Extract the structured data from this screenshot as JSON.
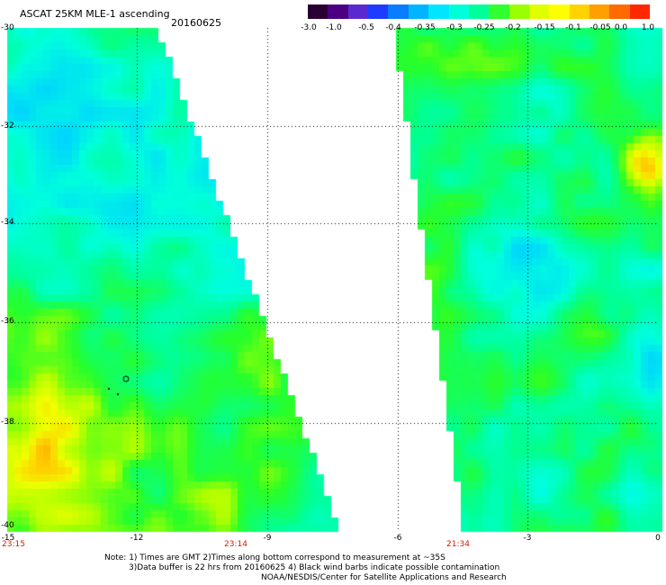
{
  "header": {
    "title": "ASCAT 25KM MLE-1 ascending",
    "date": "20160625"
  },
  "colorbar": {
    "labels": [
      "-3.0",
      "-1.0",
      "-0.5",
      "-0.4",
      "-0.35",
      "-0.3",
      "-0.25",
      "-0.2",
      "-0.15",
      "-0.1",
      "-0.05",
      "0.0",
      "1.0"
    ],
    "colors": [
      "#2a0034",
      "#4b0082",
      "#5a2ad0",
      "#1e3cff",
      "#0a7cff",
      "#00b4ff",
      "#00e6ff",
      "#00ffd8",
      "#00ff9a",
      "#30ff30",
      "#9aff00",
      "#e0ff00",
      "#ffff00",
      "#ffd200",
      "#ffa000",
      "#ff6a00",
      "#ff2800"
    ]
  },
  "map": {
    "lat_labels": [
      "-30",
      "-32",
      "-34",
      "-36",
      "-38",
      "-40"
    ],
    "lon_labels": [
      "-15",
      "-12",
      "-9",
      "-6",
      "-3",
      "0"
    ],
    "swath_times": [
      "23:15",
      "23:14",
      "21:34"
    ]
  },
  "notes": {
    "line1": "Note: 1) Times are GMT 2)Times along bottom correspond to measurement at ~35S",
    "line2": "3)Data buffer is 22 hrs from 20160625 4) Black wind barbs indicate possible contamination",
    "line3": "NOAA/NESDIS/Center for Satellite Applications and Research"
  }
}
